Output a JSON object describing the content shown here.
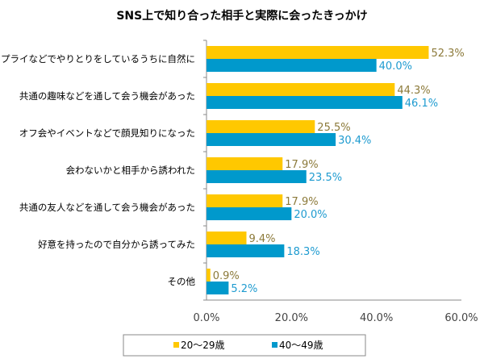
{
  "chart_data": {
    "type": "bar",
    "orientation": "horizontal",
    "title": "SNS上で知り合った相手と実際に会ったきっかけ",
    "categories": [
      "リプライなどでやりとりをしているうちに自然に",
      "共通の趣味などを通して会う機会があった",
      "オフ会やイベントなどで顔見知りになった",
      "会わないかと相手から誘われた",
      "共通の友人などを通して会う機会があった",
      "好意を持ったので自分から誘ってみた",
      "その他"
    ],
    "series": [
      {
        "name": "20〜29歳",
        "color": "#FFC800",
        "label_color": "#8C7A3A",
        "values": [
          52.3,
          44.3,
          25.5,
          17.9,
          17.9,
          9.4,
          0.9
        ],
        "labels": [
          "52.3%",
          "44.3%",
          "25.5%",
          "17.9%",
          "17.9%",
          "9.4%",
          "0.9%"
        ]
      },
      {
        "name": "40〜49歳",
        "color": "#0099CC",
        "label_color": "#1E9BD0",
        "values": [
          40.0,
          46.1,
          30.4,
          23.5,
          20.0,
          18.3,
          5.2
        ],
        "labels": [
          "40.0%",
          "46.1%",
          "30.4%",
          "23.5%",
          "20.0%",
          "18.3%",
          "5.2%"
        ]
      }
    ],
    "xlim": [
      0,
      60
    ],
    "xticks": [
      0,
      20,
      40,
      60
    ],
    "xtick_labels": [
      "0.0%",
      "20.0%",
      "40.0%",
      "60.0%"
    ],
    "grid": false,
    "legend_position": "bottom"
  }
}
